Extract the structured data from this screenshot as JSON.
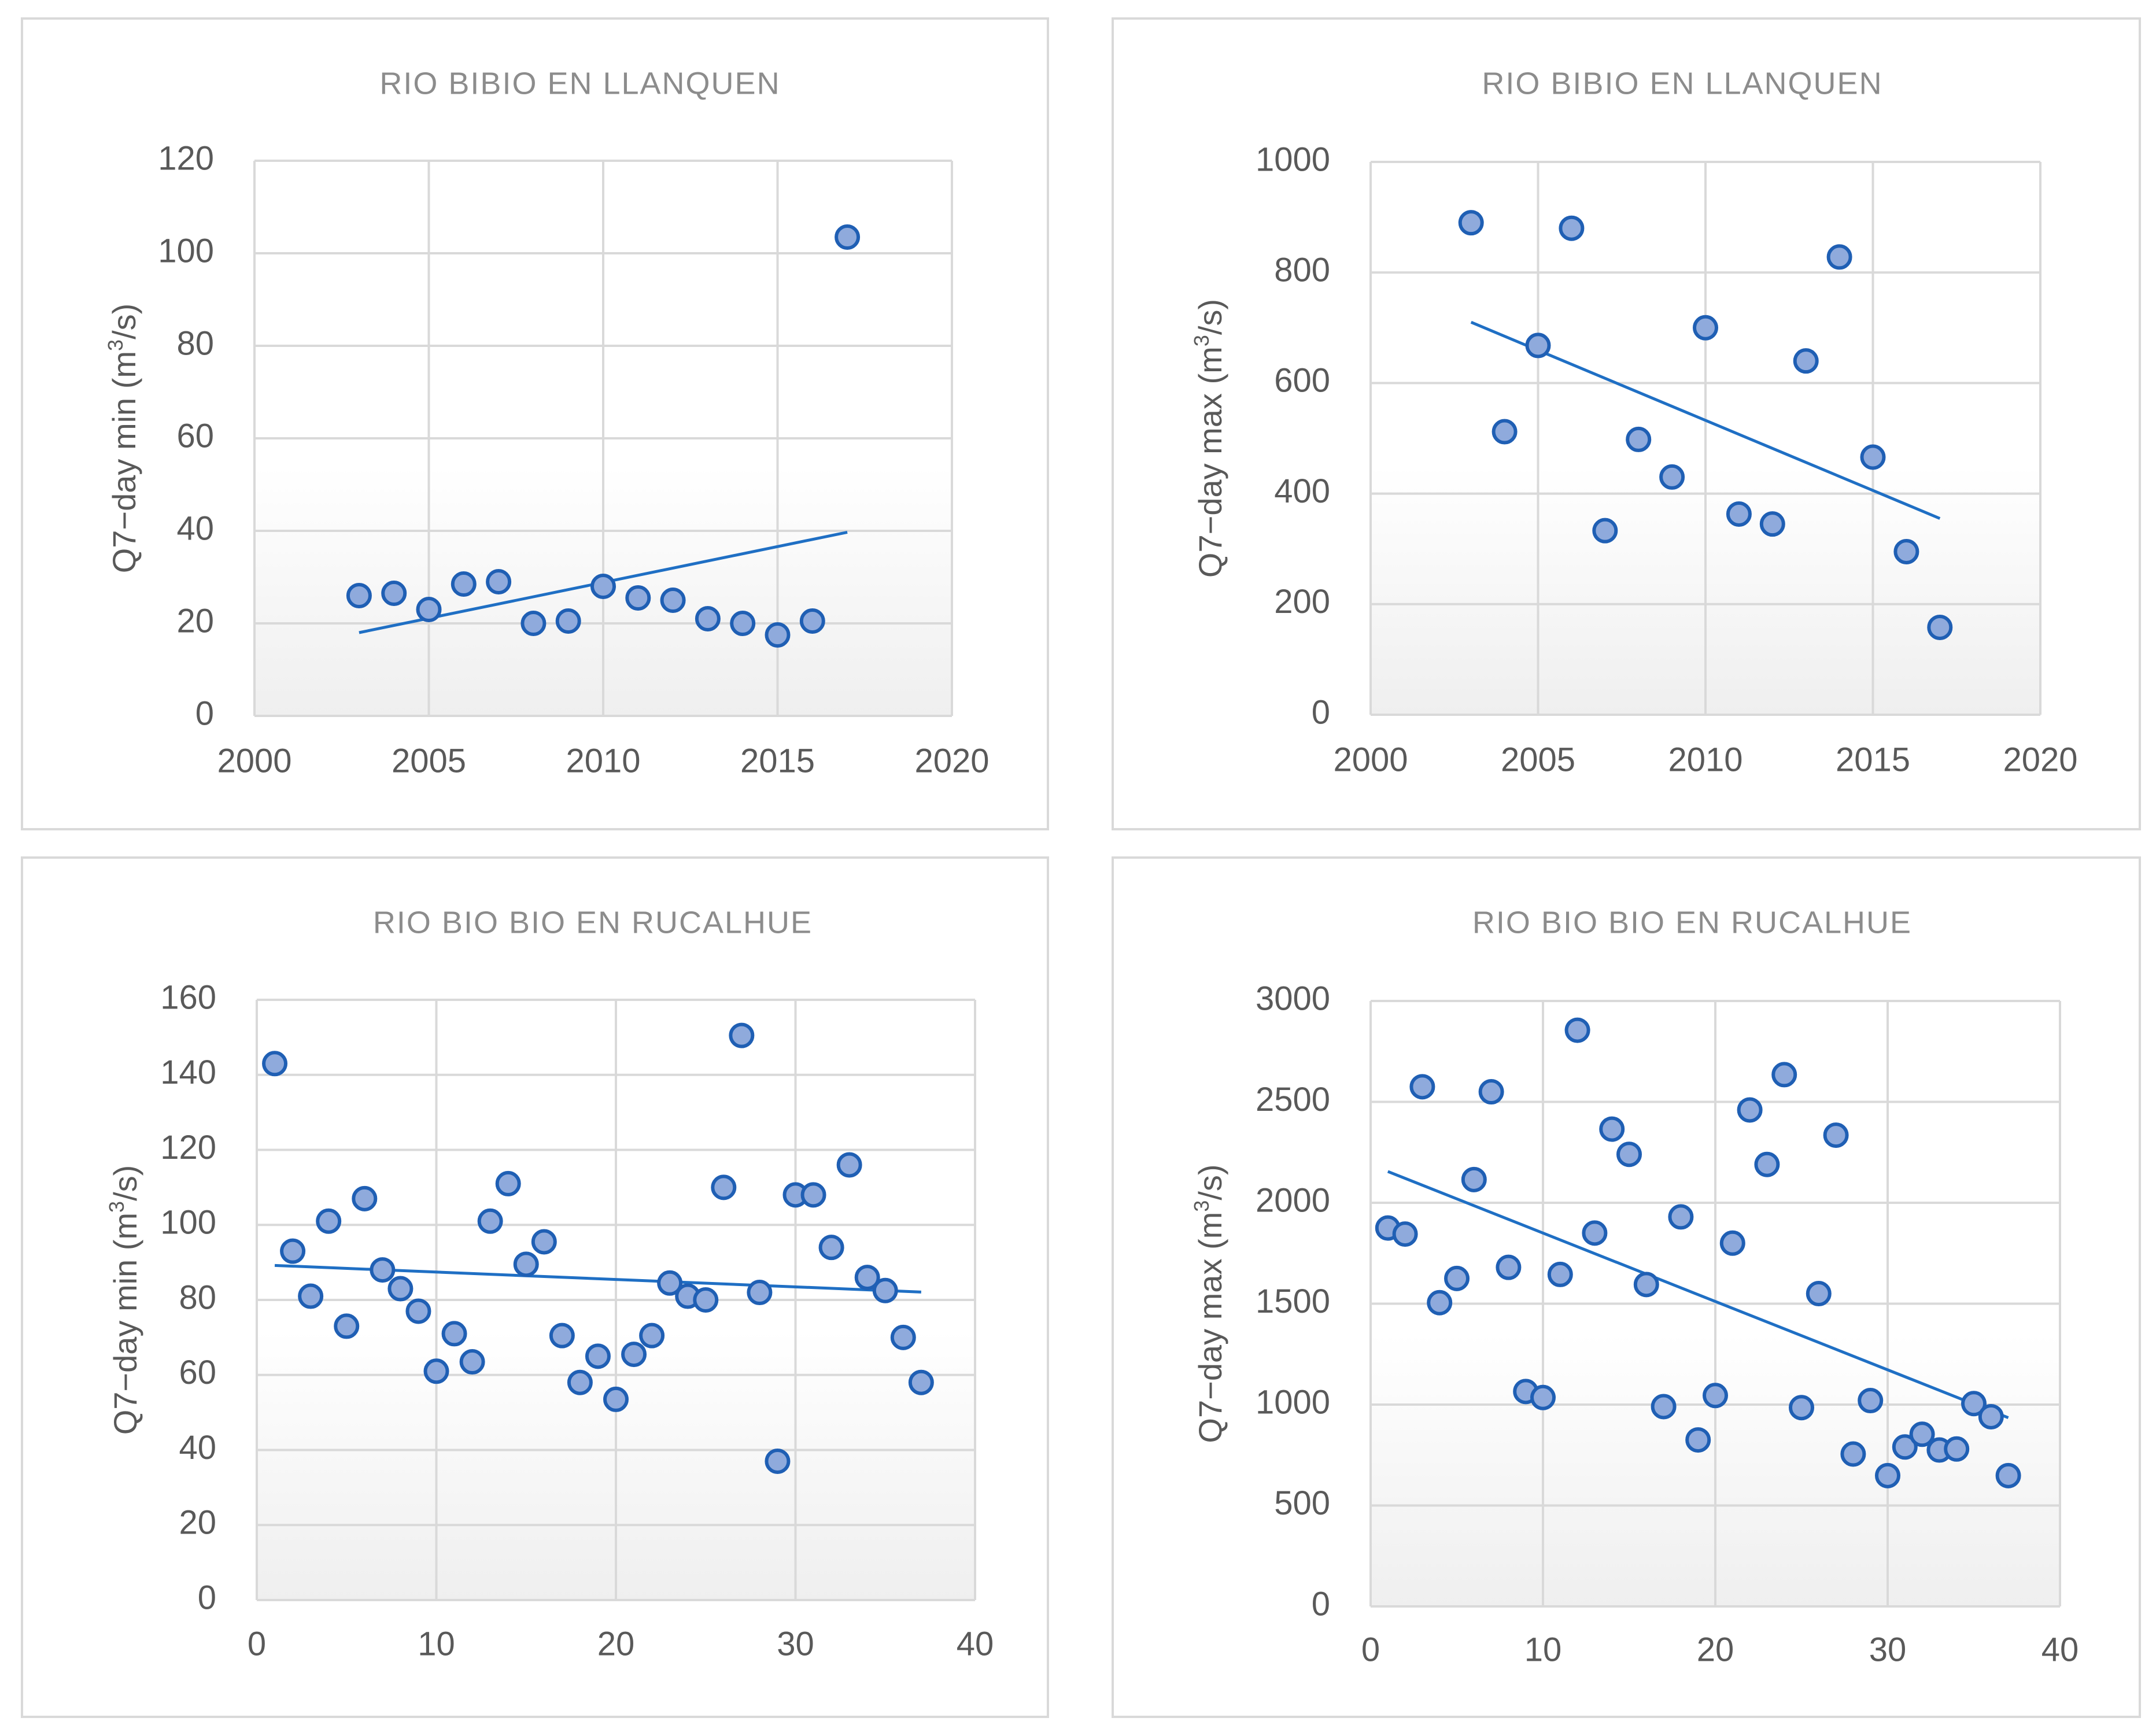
{
  "colors": {
    "marker_fill": "#8faadc",
    "marker_stroke": "#1f5fb4",
    "trendline": "#1f6fc4",
    "grid": "#d9d9d9",
    "axis_text": "#595959",
    "title_text": "#8c8c8c",
    "panel_border": "#d9d9d9",
    "plot_gradient_top": "#ffffff",
    "plot_gradient_bottom": "#efefef"
  },
  "chart_data": [
    {
      "type": "scatter",
      "title": "RIO BIBIO EN LLANQUEN",
      "xlabel": "",
      "ylabel": "Q7−day min (m³/s)",
      "ylabel_main": "Q7−day min (m",
      "ylabel_sup": "3",
      "ylabel_tail": "/s)",
      "xlim": [
        2000,
        2020
      ],
      "ylim": [
        0,
        120
      ],
      "xticks": [
        2000,
        2005,
        2010,
        2015,
        2020
      ],
      "yticks": [
        0,
        20,
        40,
        60,
        80,
        100,
        120
      ],
      "x": [
        2003,
        2004,
        2005,
        2006,
        2007,
        2008,
        2009,
        2010,
        2011,
        2012,
        2013,
        2014,
        2015,
        2016,
        2017
      ],
      "y": [
        26,
        26.5,
        23,
        28.5,
        29,
        20,
        20.5,
        28,
        25.5,
        25,
        21,
        20,
        17.5,
        20.5,
        103.5
      ],
      "trendline": {
        "x": [
          2003,
          2017
        ],
        "y": [
          18,
          39.7
        ]
      },
      "grid": true
    },
    {
      "type": "scatter",
      "title": "RIO BIBIO EN LLANQUEN",
      "xlabel": "",
      "ylabel": "Q7−day max (m³/s)",
      "ylabel_main": "Q7−day max (m",
      "ylabel_sup": "3",
      "ylabel_tail": "/s)",
      "xlim": [
        2000,
        2020
      ],
      "ylim": [
        0,
        1000
      ],
      "xticks": [
        2000,
        2005,
        2010,
        2015,
        2020
      ],
      "yticks": [
        0,
        200,
        400,
        600,
        800,
        1000
      ],
      "x": [
        2003,
        2004,
        2005,
        2006,
        2007,
        2008,
        2009,
        2010,
        2011,
        2012,
        2013,
        2014,
        2015,
        2016,
        2017
      ],
      "y": [
        890,
        512,
        668,
        880,
        333,
        498,
        430,
        700,
        363,
        345,
        640,
        828,
        466,
        295,
        158
      ],
      "trendline": {
        "x": [
          2003,
          2017
        ],
        "y": [
          710,
          355
        ]
      },
      "grid": true
    },
    {
      "type": "scatter",
      "title": "RIO BIO BIO EN RUCALHUE",
      "xlabel": "",
      "ylabel": "Q7−day min (m³/s)",
      "ylabel_main": "Q7−day min (m",
      "ylabel_sup": "3",
      "ylabel_tail": "/s)",
      "xlim": [
        0,
        40
      ],
      "ylim": [
        0,
        160
      ],
      "xticks": [
        0,
        10,
        20,
        30,
        40
      ],
      "yticks": [
        0,
        20,
        40,
        60,
        80,
        100,
        120,
        140,
        160
      ],
      "x": [
        1,
        2,
        3,
        4,
        5,
        6,
        7,
        8,
        9,
        10,
        11,
        12,
        13,
        14,
        15,
        16,
        17,
        18,
        19,
        20,
        21,
        22,
        23,
        24,
        25,
        26,
        27,
        28,
        29,
        30,
        31,
        32,
        33,
        34,
        35,
        36,
        37
      ],
      "y": [
        143,
        93,
        81,
        101,
        73,
        107,
        88,
        83,
        77,
        61,
        71,
        63.5,
        101,
        111,
        89.5,
        95.5,
        70.5,
        58,
        65,
        53.5,
        65.5,
        70.5,
        84.5,
        81,
        80,
        110,
        150.5,
        82,
        37,
        108,
        108,
        94,
        116,
        86,
        82.5,
        70,
        58
      ],
      "trendline": {
        "x": [
          1,
          37
        ],
        "y": [
          89.2,
          82.1
        ]
      },
      "grid": true
    },
    {
      "type": "scatter",
      "title": "RIO BIO BIO EN RUCALHUE",
      "xlabel": "",
      "ylabel": "Q7−day max (m³/s)",
      "ylabel_main": "Q7−day max (m",
      "ylabel_sup": "3",
      "ylabel_tail": "/s)",
      "xlim": [
        0,
        40
      ],
      "ylim": [
        0,
        3000
      ],
      "xticks": [
        0,
        10,
        20,
        30,
        40
      ],
      "yticks": [
        0,
        500,
        1000,
        1500,
        2000,
        2500,
        3000
      ],
      "x": [
        1,
        2,
        3,
        4,
        5,
        6,
        7,
        8,
        9,
        10,
        11,
        12,
        13,
        14,
        15,
        16,
        17,
        18,
        19,
        20,
        21,
        22,
        23,
        24,
        25,
        26,
        27,
        28,
        29,
        30,
        31,
        32,
        33,
        34,
        35,
        36,
        37
      ],
      "y": [
        1875,
        1845,
        2575,
        1505,
        1625,
        2115,
        2550,
        1680,
        1065,
        1035,
        1645,
        2855,
        1850,
        2365,
        2240,
        1595,
        990,
        1930,
        825,
        1045,
        1800,
        2460,
        2190,
        2635,
        985,
        1550,
        2335,
        755,
        1020,
        648,
        790,
        853,
        775,
        780,
        1005,
        940,
        648
      ],
      "trendline": {
        "x": [
          1,
          37
        ],
        "y": [
          2155,
          935
        ]
      },
      "grid": true
    }
  ]
}
